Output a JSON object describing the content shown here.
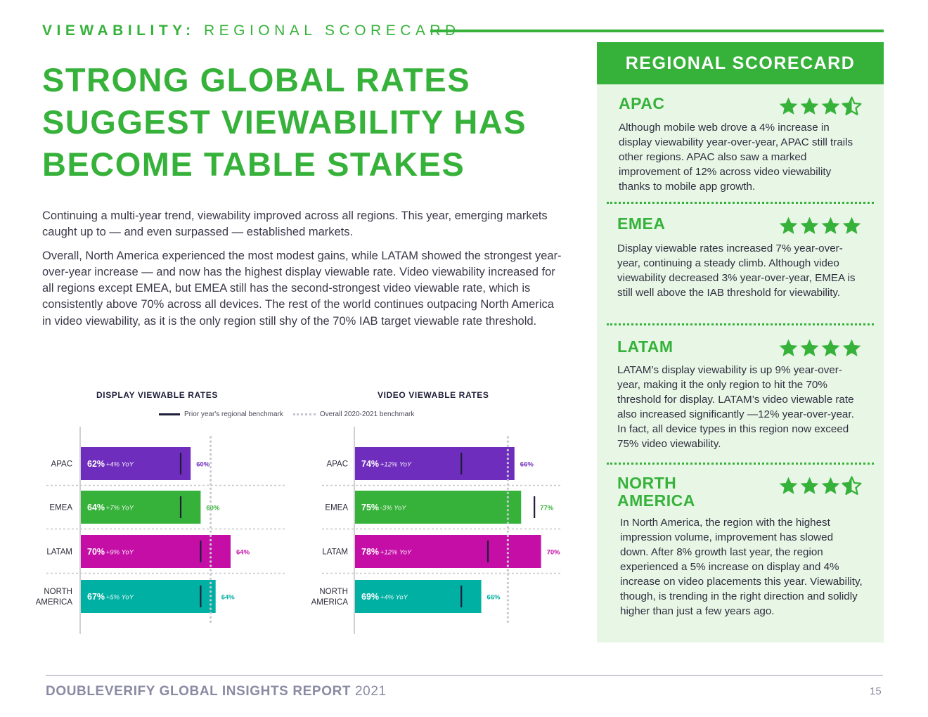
{
  "kicker": {
    "bold": "VIEWABILITY:",
    "light": "REGIONAL SCORECARD"
  },
  "headline": [
    "STRONG GLOBAL RATES",
    "SUGGEST VIEWABILITY HAS",
    "BECOME TABLE STAKES"
  ],
  "intro": {
    "p1": "Continuing a multi-year trend, viewability improved across all regions. This year, emerging markets caught up to — and even surpassed — established markets.",
    "p2": "Overall, North America experienced the most modest gains, while LATAM showed the strongest year-over-year increase — and now has the highest display viewable rate. Video viewability increased for all regions except EMEA, but EMEA still has the second-strongest video viewable rate, which is consistently above 70% across all devices. The rest of the world continues outpacing North America in video viewability, as it is the only region still shy of the 70% IAB target viewable rate threshold."
  },
  "legend": {
    "prior": "Prior year's regional benchmark",
    "overall": "Overall 2020-2021 benchmark"
  },
  "colors": {
    "green": "#36b23a",
    "apac": "#6f2dbd",
    "emea": "#36b23a",
    "latam": "#c40ea6",
    "na": "#00b0a3"
  },
  "chart_data": [
    {
      "type": "bar",
      "orientation": "horizontal",
      "title": "DISPLAY VIEWABLE RATES",
      "categories": [
        "APAC",
        "EMEA",
        "LATAM",
        "NORTH AMERICA"
      ],
      "category_lines": [
        [
          "APAC"
        ],
        [
          "EMEA"
        ],
        [
          "LATAM"
        ],
        [
          "NORTH",
          "AMERICA"
        ]
      ],
      "values": [
        62,
        64,
        70,
        67
      ],
      "value_labels": [
        "62%",
        "64%",
        "70%",
        "67%"
      ],
      "yoy_labels": [
        "+4% YoY",
        "+7% YoY",
        "+9% YoY",
        "+5% YoY"
      ],
      "prior_year_benchmark": [
        60,
        60,
        64,
        64
      ],
      "prior_labels": [
        "60%",
        "60%",
        "64%",
        "64%"
      ],
      "overall_benchmark": 66,
      "xlim": [
        40,
        75
      ]
    },
    {
      "type": "bar",
      "orientation": "horizontal",
      "title": "VIDEO VIEWABLE RATES",
      "categories": [
        "APAC",
        "EMEA",
        "LATAM",
        "NORTH AMERICA"
      ],
      "category_lines": [
        [
          "APAC"
        ],
        [
          "EMEA"
        ],
        [
          "LATAM"
        ],
        [
          "NORTH",
          "AMERICA"
        ]
      ],
      "values": [
        74,
        75,
        78,
        69
      ],
      "value_labels": [
        "74%",
        "75%",
        "78%",
        "69%"
      ],
      "yoy_labels": [
        "+12% YoY",
        "-3% YoY",
        "+12% YoY",
        "+4% YoY"
      ],
      "prior_year_benchmark": [
        66,
        77,
        70,
        66
      ],
      "prior_labels": [
        "66%",
        "77%",
        "70%",
        "66%"
      ],
      "overall_benchmark": 73,
      "xlim": [
        50,
        80
      ]
    }
  ],
  "scorecard": {
    "title": "REGIONAL SCORECARD",
    "regions": [
      {
        "name": "APAC",
        "rating": 3.5,
        "text": "Although mobile web drove a 4% increase in display viewability year-over-year, APAC still trails other regions. APAC also saw a marked improvement of 12% across video viewability thanks to mobile app growth."
      },
      {
        "name": "EMEA",
        "rating": 4,
        "text": "Display viewable rates increased 7% year-over-year, continuing a steady climb. Although video viewability decreased 3% year-over-year, EMEA is still well above the IAB threshold for viewability."
      },
      {
        "name": "LATAM",
        "rating": 4,
        "text": "LATAM’s display viewability is up 9% year-over-year, making it the only region to hit the 70% threshold for display. LATAM’s video viewable rate also increased significantly —12% year-over-year. In fact, all device types in this region now exceed 75% video viewability."
      },
      {
        "name_line1": "NORTH",
        "name_line2": "AMERICA",
        "rating": 3.5,
        "text": "In North America, the region with the highest impression volume, improvement has slowed down. After 8% growth last year, the region experienced a 5% increase on display and 4% increase on video placements this year. Viewability, though, is trending in the right direction and solidly higher than just a few years ago."
      }
    ]
  },
  "footer": {
    "bold": "DOUBLEVERIFY GLOBAL INSIGHTS REPORT",
    "year": "2021",
    "page": "15"
  }
}
